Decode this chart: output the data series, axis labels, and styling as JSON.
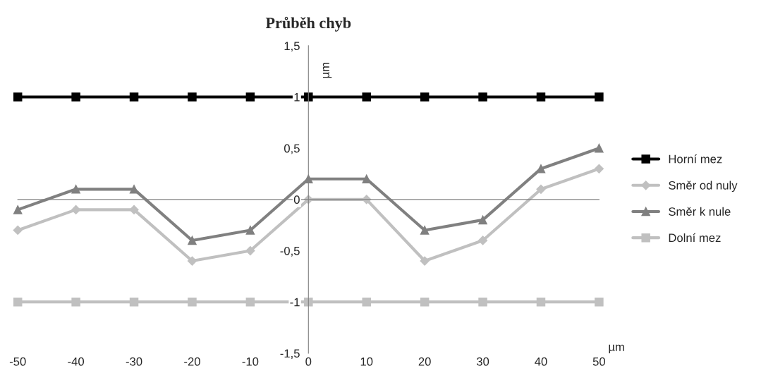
{
  "chart_data": {
    "type": "line",
    "title": "Průběh chyb",
    "xlabel": "µm",
    "ylabel": "µm",
    "x": [
      -50,
      -40,
      -30,
      -20,
      -10,
      0,
      10,
      20,
      30,
      40,
      50
    ],
    "series": [
      {
        "name": "Horní mez",
        "color": "#000000",
        "marker": "square",
        "values": [
          1,
          1,
          1,
          1,
          1,
          1,
          1,
          1,
          1,
          1,
          1
        ]
      },
      {
        "name": "Směr od nuly",
        "color": "#c0c0c0",
        "marker": "diamond",
        "values": [
          -0.3,
          -0.1,
          -0.1,
          -0.6,
          -0.5,
          0,
          0,
          -0.6,
          -0.4,
          0.1,
          0.3
        ]
      },
      {
        "name": "Směr k nule",
        "color": "#808080",
        "marker": "triangle",
        "values": [
          -0.1,
          0.1,
          0.1,
          -0.4,
          -0.3,
          0.2,
          0.2,
          -0.3,
          -0.2,
          0.3,
          0.5
        ]
      },
      {
        "name": "Dolní mez",
        "color": "#c0c0c0",
        "marker": "square",
        "values": [
          -1,
          -1,
          -1,
          -1,
          -1,
          -1,
          -1,
          -1,
          -1,
          -1,
          -1
        ]
      }
    ],
    "xlim": [
      -50,
      50
    ],
    "ylim": [
      -1.5,
      1.5
    ],
    "xticks": [
      -50,
      -40,
      -30,
      -20,
      -10,
      0,
      10,
      20,
      30,
      40,
      50
    ],
    "yticks": [
      {
        "value": -1.5,
        "label": "-1,5"
      },
      -1,
      {
        "value": -0.5,
        "label": "-0,5"
      },
      0,
      {
        "value": 0.5,
        "label": "0,5"
      },
      1,
      {
        "value": 1.5,
        "label": "1,5"
      }
    ],
    "grid": false,
    "legend": "right",
    "line_style": "solid"
  }
}
